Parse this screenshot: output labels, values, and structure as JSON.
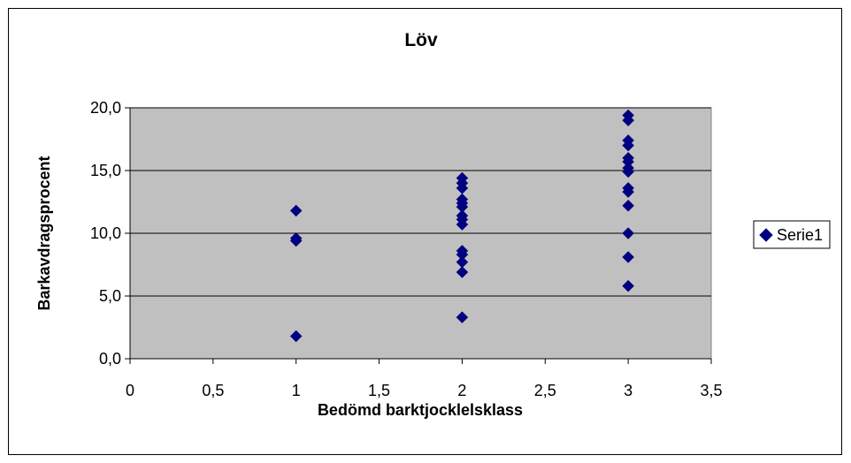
{
  "chart_data": {
    "type": "scatter",
    "title": "Löv",
    "xlabel": "Bedömd barktjocklelsklass",
    "ylabel": "Barkavdragsprocent",
    "xlim": [
      0,
      3.5
    ],
    "ylim": [
      0,
      20
    ],
    "xticks": [
      "0",
      "0,5",
      "1",
      "1,5",
      "2",
      "2,5",
      "3",
      "3,5"
    ],
    "yticks": [
      "0,0",
      "5,0",
      "10,0",
      "15,0",
      "20,0"
    ],
    "grid": "horizontal",
    "legend": "right",
    "plot_background": "#c0c0c0",
    "series": [
      {
        "name": "Serie1",
        "color": "#000080",
        "marker": "diamond",
        "points": [
          [
            1,
            11.8
          ],
          [
            1,
            9.6
          ],
          [
            1,
            9.4
          ],
          [
            1,
            1.8
          ],
          [
            2,
            14.4
          ],
          [
            2,
            14.0
          ],
          [
            2,
            13.6
          ],
          [
            2,
            12.7
          ],
          [
            2,
            12.4
          ],
          [
            2,
            12.1
          ],
          [
            2,
            11.4
          ],
          [
            2,
            11.1
          ],
          [
            2,
            10.7
          ],
          [
            2,
            8.6
          ],
          [
            2,
            8.3
          ],
          [
            2,
            7.7
          ],
          [
            2,
            6.9
          ],
          [
            2,
            3.3
          ],
          [
            3,
            19.4
          ],
          [
            3,
            19.0
          ],
          [
            3,
            17.4
          ],
          [
            3,
            17.0
          ],
          [
            3,
            16.0
          ],
          [
            3,
            15.7
          ],
          [
            3,
            15.2
          ],
          [
            3,
            14.9
          ],
          [
            3,
            13.6
          ],
          [
            3,
            13.3
          ],
          [
            3,
            12.2
          ],
          [
            3,
            10.0
          ],
          [
            3,
            8.1
          ],
          [
            3,
            5.8
          ]
        ]
      }
    ]
  }
}
